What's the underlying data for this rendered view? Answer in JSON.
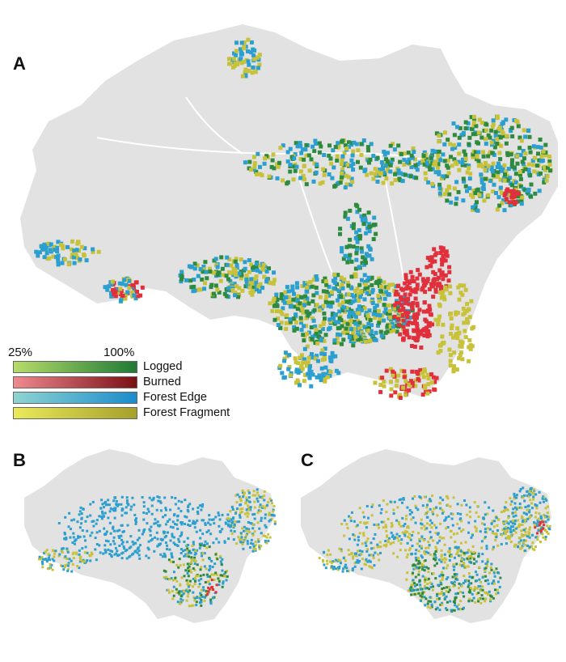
{
  "panels": [
    {
      "letter": "A"
    },
    {
      "letter": "B"
    },
    {
      "letter": "C"
    }
  ],
  "legend": {
    "scale_min": "25%",
    "scale_max": "100%",
    "items": [
      {
        "label": "Logged",
        "color_low": "#b6dc6a",
        "color_high": "#1f7a35"
      },
      {
        "label": "Burned",
        "color_low": "#f08a8f",
        "color_high": "#7a0f14"
      },
      {
        "label": "Forest Edge",
        "color_low": "#8fd4d0",
        "color_high": "#1b8ccc"
      },
      {
        "label": "Forest Fragment",
        "color_low": "#eaea5a",
        "color_high": "#a5a02c"
      }
    ]
  },
  "colors": {
    "land": "#e2e2e2",
    "rivers": "#ffffff",
    "logged": "#2e8b3e",
    "burned": "#e0303c",
    "edge": "#2a9fd0",
    "fragment": "#c8c23a"
  }
}
